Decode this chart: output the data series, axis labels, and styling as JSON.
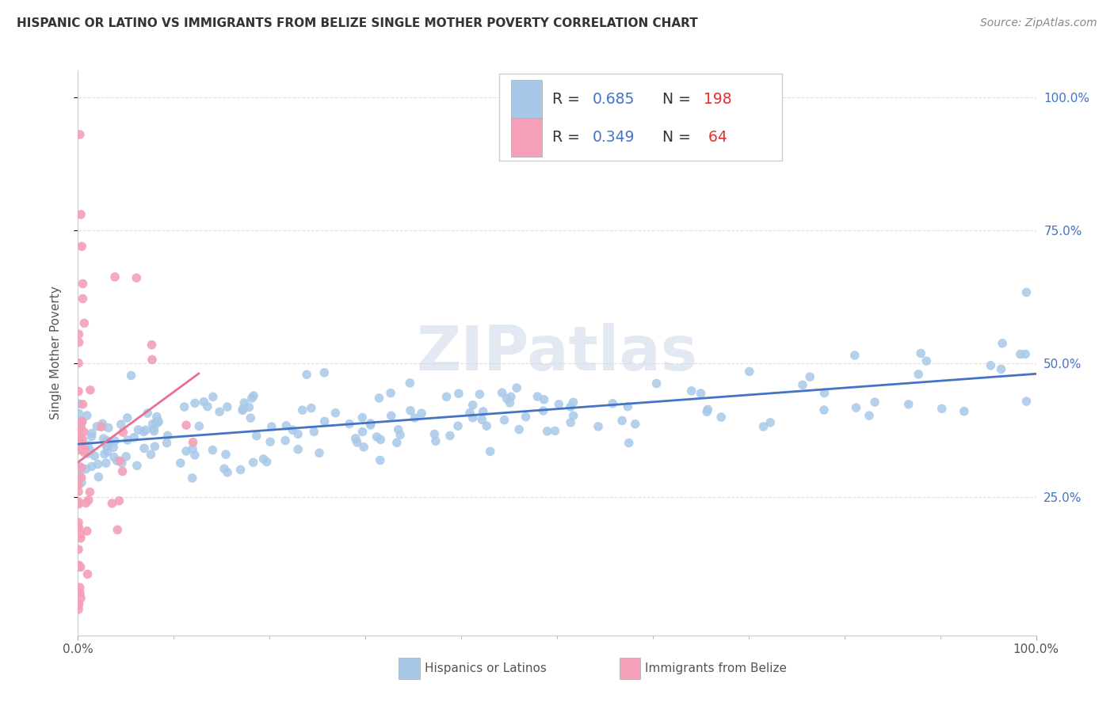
{
  "title": "HISPANIC OR LATINO VS IMMIGRANTS FROM BELIZE SINGLE MOTHER POVERTY CORRELATION CHART",
  "source": "Source: ZipAtlas.com",
  "ylabel": "Single Mother Poverty",
  "ytick_vals": [
    0.25,
    0.5,
    0.75,
    1.0
  ],
  "ytick_labels": [
    "25.0%",
    "50.0%",
    "75.0%",
    "100.0%"
  ],
  "xtick_labels": [
    "0.0%",
    "100.0%"
  ],
  "xtick_vals": [
    0.0,
    1.0
  ],
  "legend_blue_r": "0.685",
  "legend_blue_n": "198",
  "legend_pink_r": "0.349",
  "legend_pink_n": "64",
  "blue_color": "#a8c8e8",
  "pink_color": "#f4a0b8",
  "blue_line_color": "#4472c4",
  "pink_line_color": "#e87090",
  "blue_legend_color": "#4472c4",
  "pink_legend_color": "#f4a0b8",
  "n_color": "#e03030",
  "r_n_color": "#4472c4",
  "watermark": "ZIPatlas",
  "blue_R": 0.685,
  "blue_N": 198,
  "pink_R": 0.349,
  "pink_N": 64,
  "xlim": [
    0.0,
    1.0
  ],
  "ylim": [
    -0.01,
    1.05
  ]
}
